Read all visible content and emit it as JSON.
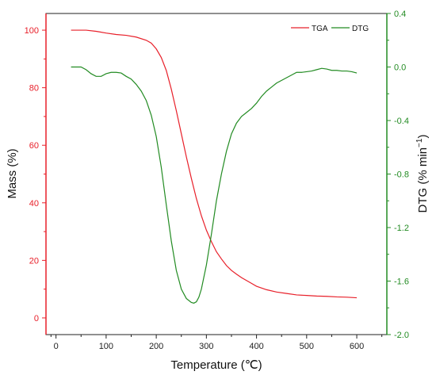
{
  "chart_data": {
    "type": "line",
    "xlabel": "Temperature (℃)",
    "ylabel_left": "Mass (%)",
    "ylabel_right_base": "DTG (% min",
    "ylabel_right_sup": "−1",
    "ylabel_right_end": ")",
    "xlim": [
      -20,
      660
    ],
    "ylim_left": [
      -5.8,
      105.8
    ],
    "ylim_right": [
      -2.0,
      0.4
    ],
    "x_ticks": [
      0,
      100,
      200,
      300,
      400,
      500,
      600
    ],
    "left_ticks": [
      0,
      20,
      40,
      60,
      80,
      100
    ],
    "right_ticks": [
      0.4,
      0.0,
      -0.4,
      -0.8,
      -1.2,
      -1.6,
      -2.0
    ],
    "right_tick_labels": [
      "0.4",
      "0.0",
      "-0.4",
      "-0.8",
      "-1.2",
      "-1.6",
      "-2.0"
    ],
    "legend": {
      "position": "top-right",
      "entries": [
        "TGA",
        "DTG"
      ]
    },
    "series": [
      {
        "name": "TGA",
        "axis": "left",
        "color": "#e8202a",
        "points": [
          [
            30,
            100
          ],
          [
            60,
            100
          ],
          [
            80,
            99.6
          ],
          [
            100,
            99
          ],
          [
            120,
            98.5
          ],
          [
            140,
            98.2
          ],
          [
            160,
            97.6
          ],
          [
            180,
            96.5
          ],
          [
            190,
            95.5
          ],
          [
            200,
            93.5
          ],
          [
            210,
            90.5
          ],
          [
            220,
            86
          ],
          [
            230,
            79.5
          ],
          [
            240,
            72
          ],
          [
            250,
            64
          ],
          [
            260,
            56
          ],
          [
            270,
            48.5
          ],
          [
            280,
            41.5
          ],
          [
            290,
            35.5
          ],
          [
            300,
            30.5
          ],
          [
            310,
            26.5
          ],
          [
            320,
            23
          ],
          [
            330,
            20.5
          ],
          [
            340,
            18.2
          ],
          [
            350,
            16.5
          ],
          [
            360,
            15.2
          ],
          [
            370,
            14
          ],
          [
            380,
            13
          ],
          [
            390,
            12
          ],
          [
            400,
            11
          ],
          [
            420,
            9.8
          ],
          [
            440,
            9
          ],
          [
            460,
            8.5
          ],
          [
            480,
            8
          ],
          [
            500,
            7.8
          ],
          [
            520,
            7.6
          ],
          [
            540,
            7.5
          ],
          [
            560,
            7.3
          ],
          [
            580,
            7.2
          ],
          [
            600,
            7
          ]
        ]
      },
      {
        "name": "DTG",
        "axis": "right",
        "color": "#228b22",
        "points": [
          [
            30,
            0.0
          ],
          [
            50,
            0.0
          ],
          [
            60,
            -0.02
          ],
          [
            70,
            -0.05
          ],
          [
            80,
            -0.07
          ],
          [
            90,
            -0.07
          ],
          [
            100,
            -0.05
          ],
          [
            110,
            -0.04
          ],
          [
            120,
            -0.04
          ],
          [
            130,
            -0.045
          ],
          [
            140,
            -0.07
          ],
          [
            150,
            -0.09
          ],
          [
            160,
            -0.13
          ],
          [
            170,
            -0.18
          ],
          [
            180,
            -0.25
          ],
          [
            190,
            -0.36
          ],
          [
            200,
            -0.52
          ],
          [
            210,
            -0.75
          ],
          [
            220,
            -1.03
          ],
          [
            230,
            -1.3
          ],
          [
            240,
            -1.52
          ],
          [
            250,
            -1.66
          ],
          [
            260,
            -1.73
          ],
          [
            270,
            -1.76
          ],
          [
            275,
            -1.765
          ],
          [
            280,
            -1.755
          ],
          [
            285,
            -1.72
          ],
          [
            290,
            -1.66
          ],
          [
            300,
            -1.48
          ],
          [
            310,
            -1.25
          ],
          [
            320,
            -1.0
          ],
          [
            330,
            -0.8
          ],
          [
            340,
            -0.63
          ],
          [
            350,
            -0.5
          ],
          [
            360,
            -0.42
          ],
          [
            370,
            -0.37
          ],
          [
            380,
            -0.34
          ],
          [
            390,
            -0.31
          ],
          [
            400,
            -0.27
          ],
          [
            410,
            -0.22
          ],
          [
            420,
            -0.18
          ],
          [
            430,
            -0.15
          ],
          [
            440,
            -0.12
          ],
          [
            450,
            -0.1
          ],
          [
            460,
            -0.08
          ],
          [
            470,
            -0.06
          ],
          [
            480,
            -0.04
          ],
          [
            490,
            -0.04
          ],
          [
            500,
            -0.035
          ],
          [
            510,
            -0.03
          ],
          [
            520,
            -0.02
          ],
          [
            530,
            -0.01
          ],
          [
            540,
            -0.015
          ],
          [
            550,
            -0.025
          ],
          [
            560,
            -0.025
          ],
          [
            570,
            -0.03
          ],
          [
            580,
            -0.03
          ],
          [
            590,
            -0.035
          ],
          [
            600,
            -0.045
          ]
        ]
      }
    ]
  }
}
